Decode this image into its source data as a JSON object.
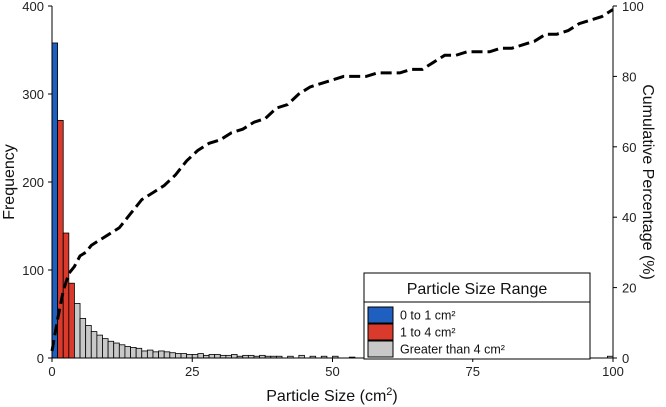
{
  "chart_data": {
    "type": "bar",
    "title": "",
    "xlabel_main": "Particle Size (cm",
    "xlabel_sup": "2",
    "xlabel_end": ")",
    "ylabel": "Frequency",
    "y2label": "Cumulative Percentage (%)",
    "xlim": [
      0,
      100
    ],
    "ylim": [
      0,
      400
    ],
    "y2lim": [
      0,
      100
    ],
    "x_ticks": [
      "0",
      "25",
      "50",
      "75",
      "100"
    ],
    "y_ticks": [
      "0",
      "100",
      "200",
      "300",
      "400"
    ],
    "y2_ticks": [
      "0",
      "20",
      "40",
      "60",
      "80",
      "100"
    ],
    "bin_width": 1,
    "legend": {
      "title": "Particle Size Range",
      "placement": "bottom-right",
      "items": [
        {
          "label": "0 to 1 cm²",
          "color": "#1f5fbf"
        },
        {
          "label": "1 to 4 cm²",
          "color": "#d93a2b"
        },
        {
          "label": "Greater than 4 cm²",
          "color": "#c8c8c8"
        }
      ]
    },
    "series": [
      {
        "range": "0 to 1 cm²",
        "color": "#1f5fbf",
        "bin_start": [
          0
        ],
        "values": [
          358
        ]
      },
      {
        "range": "1 to 4 cm²",
        "color": "#d93a2b",
        "bin_start": [
          1,
          2,
          3
        ],
        "values": [
          270,
          142,
          85
        ]
      },
      {
        "range": "Greater than 4 cm²",
        "color": "#c8c8c8",
        "bin_start": [
          4,
          5,
          6,
          7,
          8,
          9,
          10,
          11,
          12,
          13,
          14,
          15,
          16,
          17,
          18,
          19,
          20,
          21,
          22,
          23,
          24,
          25,
          26,
          27,
          28,
          29,
          30,
          31,
          32,
          33,
          34,
          35,
          36,
          37,
          38,
          39,
          40,
          42,
          44,
          46,
          48,
          50,
          53,
          57,
          60,
          64,
          70,
          76,
          82,
          88,
          94,
          99
        ],
        "values": [
          62,
          45,
          37,
          30,
          26,
          22,
          19,
          17,
          15,
          13,
          12,
          11,
          8,
          9,
          7,
          8,
          7,
          6,
          5,
          5,
          4,
          4,
          5,
          3,
          4,
          4,
          3,
          3,
          4,
          2,
          3,
          3,
          2,
          3,
          2,
          2,
          2,
          2,
          3,
          2,
          2,
          2,
          1,
          2,
          1,
          2,
          1,
          1,
          1,
          1,
          1,
          2
        ]
      }
    ],
    "cumulative": {
      "style": "dashed",
      "color": "#000000",
      "x": [
        0,
        1,
        2,
        3,
        4,
        5,
        6,
        7,
        8,
        10,
        12,
        14,
        16,
        18,
        20,
        22,
        24,
        26,
        28,
        30,
        32,
        34,
        36,
        38,
        40,
        42,
        44,
        46,
        48,
        50,
        52,
        54,
        56,
        58,
        60,
        62,
        64,
        66,
        68,
        70,
        72,
        74,
        76,
        78,
        80,
        82,
        84,
        86,
        88,
        90,
        92,
        94,
        96,
        98,
        100
      ],
      "y": [
        2,
        11,
        19,
        24,
        26,
        29,
        30,
        32,
        33,
        35,
        37,
        41,
        45,
        47,
        49,
        52,
        56,
        59,
        61,
        62,
        64,
        65,
        67,
        68,
        71,
        72,
        75,
        77,
        78,
        79,
        80,
        80,
        80,
        81,
        81,
        81,
        82,
        82,
        84,
        86,
        86,
        87,
        87,
        87,
        88,
        88,
        89,
        90,
        92,
        92,
        93,
        95,
        96,
        97,
        99
      ]
    }
  }
}
